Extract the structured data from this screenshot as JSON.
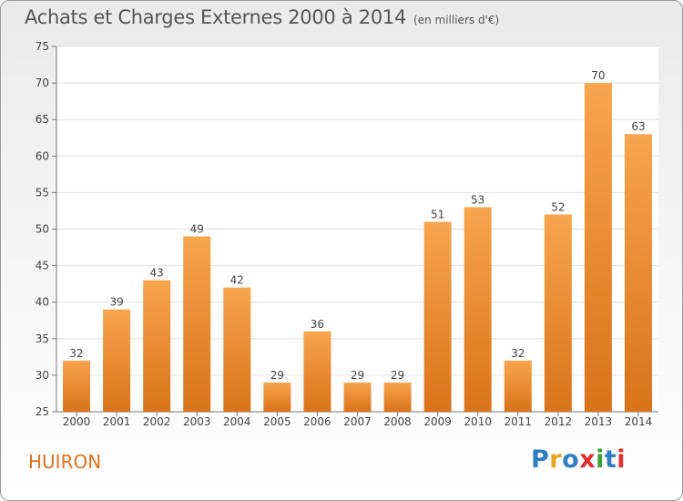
{
  "header": {
    "title": "Achats et Charges Externes 2000 à 2014",
    "subtitle": "(en milliers d'€)"
  },
  "commune": "HUIRON",
  "logo": {
    "text": "Proxiti",
    "letters": [
      "P",
      "r",
      "o",
      "x",
      "i",
      "t",
      "i"
    ]
  },
  "colors": {
    "bar_top": "#f7a54e",
    "bar_bottom": "#d9731a",
    "accent": "#e0701a",
    "grid": "#e0e0e0"
  },
  "chart_data": {
    "type": "bar",
    "title": "Achats et Charges Externes 2000 à 2014",
    "subtitle": "(en milliers d'€)",
    "categories": [
      "2000",
      "2001",
      "2002",
      "2003",
      "2004",
      "2005",
      "2006",
      "2007",
      "2008",
      "2009",
      "2010",
      "2011",
      "2012",
      "2013",
      "2014"
    ],
    "values": [
      32,
      39,
      43,
      49,
      42,
      29,
      36,
      29,
      29,
      51,
      53,
      32,
      52,
      70,
      63
    ],
    "ylim": [
      25,
      75
    ],
    "yticks": [
      25,
      30,
      35,
      40,
      45,
      50,
      55,
      60,
      65,
      70,
      75
    ],
    "grid": true,
    "data_labels": true
  }
}
